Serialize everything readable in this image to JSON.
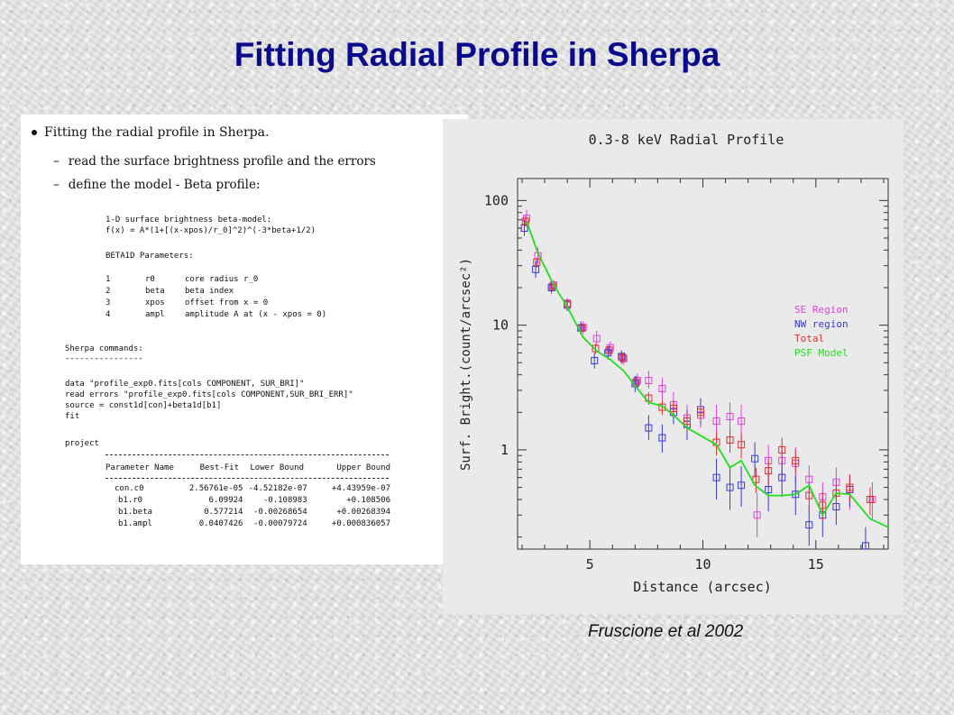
{
  "slide": {
    "title": "Fitting Radial Profile in Sherpa",
    "caption": "Fruscione et al 2002"
  },
  "document": {
    "bullet": "Fitting the radial profile in Sherpa.",
    "dash_items": [
      "read the surface brightness profile and the errors",
      "define the model - Beta profile:"
    ],
    "model_lines": [
      "1-D surface brightness beta-model:",
      "f(x) = A*(1+[(x-xpos)/r_0]^2)^(-3*beta+1/2)"
    ],
    "params_header": "BETA1D Parameters:",
    "params": [
      {
        "num": "1",
        "name": "r0",
        "desc": "core radius r_0"
      },
      {
        "num": "2",
        "name": "beta",
        "desc": "beta index"
      },
      {
        "num": "3",
        "name": "xpos",
        "desc": "offset from x = 0"
      },
      {
        "num": "4",
        "name": "ampl",
        "desc": "amplitude A at (x - xpos = 0)"
      }
    ],
    "commands_header": "Sherpa commands:",
    "commands_rule": "----------------",
    "commands": [
      "data \"profile_exp0.fits[cols COMPONENT, SUR_BRI]\"",
      "read errors \"profile_exp0.fits[cols COMPONENT,SUR_BRI_ERR]\"",
      "source = const1d[con]+beta1d[b1]",
      "fit"
    ],
    "project_label": "project",
    "fit_table": {
      "headers": [
        "Parameter Name",
        "Best-Fit",
        "Lower Bound",
        "Upper Bound"
      ],
      "rows": [
        [
          "con.c0",
          "2.56761e-05",
          "-4.52182e-07",
          "+4.43959e-07"
        ],
        [
          "b1.r0",
          "6.09924",
          "-0.108983",
          "+0.108506"
        ],
        [
          "b1.beta",
          "0.577214",
          "-0.00268654",
          "+0.00268394"
        ],
        [
          "b1.ampl",
          "0.0407426",
          "-0.00079724",
          "+0.000836057"
        ]
      ]
    }
  },
  "chart_data": {
    "type": "scatter",
    "title": "0.3-8 keV Radial Profile",
    "xlabel": "Distance (arcsec)",
    "ylabel": "Surf. Bright.(count/arcsec²)",
    "xlim": [
      1.8,
      18.2
    ],
    "ylim": [
      0.16,
      150
    ],
    "yscale": "log",
    "x_ticks": [
      5,
      10,
      15
    ],
    "y_ticks": [
      1,
      10,
      100
    ],
    "grid": false,
    "legend_position": "right-center",
    "series": [
      {
        "name": "SE Region",
        "color": "#e040e0",
        "marker": "square",
        "points": [
          {
            "x": 2.2,
            "y": 72,
            "lo": 62,
            "hi": 84
          },
          {
            "x": 2.7,
            "y": 36,
            "lo": 31,
            "hi": 42
          },
          {
            "x": 3.4,
            "y": 21,
            "lo": 19,
            "hi": 23
          },
          {
            "x": 4.0,
            "y": 15,
            "lo": 13.5,
            "hi": 16.5
          },
          {
            "x": 4.7,
            "y": 9.6,
            "lo": 8.5,
            "hi": 10.8
          },
          {
            "x": 5.3,
            "y": 7.8,
            "lo": 6.8,
            "hi": 9.0
          },
          {
            "x": 5.9,
            "y": 6.6,
            "lo": 5.8,
            "hi": 7.4
          },
          {
            "x": 6.5,
            "y": 5.4,
            "lo": 4.8,
            "hi": 6.1
          },
          {
            "x": 7.1,
            "y": 3.6,
            "lo": 3.1,
            "hi": 4.1
          },
          {
            "x": 7.6,
            "y": 3.6,
            "lo": 3.1,
            "hi": 4.3
          },
          {
            "x": 8.2,
            "y": 3.1,
            "lo": 2.5,
            "hi": 3.8
          },
          {
            "x": 8.7,
            "y": 2.3,
            "lo": 1.8,
            "hi": 2.9
          },
          {
            "x": 9.3,
            "y": 1.8,
            "lo": 1.3,
            "hi": 2.3
          },
          {
            "x": 9.9,
            "y": 1.9,
            "lo": 1.5,
            "hi": 2.4
          },
          {
            "x": 10.6,
            "y": 1.7,
            "lo": 1.2,
            "hi": 2.3
          },
          {
            "x": 11.2,
            "y": 1.85,
            "lo": 1.4,
            "hi": 2.4
          },
          {
            "x": 11.7,
            "y": 1.7,
            "lo": 1.2,
            "hi": 2.3
          },
          {
            "x": 12.4,
            "y": 0.3,
            "lo": 0.2,
            "hi": 0.45
          },
          {
            "x": 12.9,
            "y": 0.82,
            "lo": 0.6,
            "hi": 1.1
          },
          {
            "x": 13.5,
            "y": 0.82,
            "lo": 0.55,
            "hi": 1.1
          },
          {
            "x": 14.1,
            "y": 0.78,
            "lo": 0.55,
            "hi": 1.05
          },
          {
            "x": 14.7,
            "y": 0.58,
            "lo": 0.4,
            "hi": 0.75
          },
          {
            "x": 15.3,
            "y": 0.42,
            "lo": 0.3,
            "hi": 0.55
          },
          {
            "x": 15.9,
            "y": 0.55,
            "lo": 0.4,
            "hi": 0.72
          },
          {
            "x": 16.5,
            "y": 0.48,
            "lo": 0.33,
            "hi": 0.64
          },
          {
            "x": 17.5,
            "y": 0.4,
            "lo": 0.28,
            "hi": 0.55
          }
        ]
      },
      {
        "name": "NW region",
        "color": "#3a3ad0",
        "marker": "square",
        "points": [
          {
            "x": 2.1,
            "y": 60,
            "lo": 52,
            "hi": 70
          },
          {
            "x": 2.6,
            "y": 28,
            "lo": 24,
            "hi": 33
          },
          {
            "x": 3.3,
            "y": 20,
            "lo": 18,
            "hi": 22
          },
          {
            "x": 4.0,
            "y": 14.5,
            "lo": 13,
            "hi": 16
          },
          {
            "x": 4.6,
            "y": 9.5,
            "lo": 8.4,
            "hi": 10.7
          },
          {
            "x": 5.2,
            "y": 5.2,
            "lo": 4.5,
            "hi": 6.0
          },
          {
            "x": 5.8,
            "y": 6.0,
            "lo": 5.3,
            "hi": 6.8
          },
          {
            "x": 6.4,
            "y": 5.6,
            "lo": 4.9,
            "hi": 6.3
          },
          {
            "x": 7.0,
            "y": 3.4,
            "lo": 2.9,
            "hi": 3.9
          },
          {
            "x": 7.6,
            "y": 1.5,
            "lo": 1.2,
            "hi": 1.9
          },
          {
            "x": 8.2,
            "y": 1.25,
            "lo": 0.95,
            "hi": 1.6
          },
          {
            "x": 8.7,
            "y": 2.0,
            "lo": 1.6,
            "hi": 2.5
          },
          {
            "x": 9.3,
            "y": 1.6,
            "lo": 1.2,
            "hi": 2.1
          },
          {
            "x": 9.9,
            "y": 2.1,
            "lo": 1.6,
            "hi": 2.6
          },
          {
            "x": 10.6,
            "y": 0.6,
            "lo": 0.4,
            "hi": 0.85
          },
          {
            "x": 11.2,
            "y": 0.5,
            "lo": 0.33,
            "hi": 0.72
          },
          {
            "x": 11.7,
            "y": 0.52,
            "lo": 0.35,
            "hi": 0.74
          },
          {
            "x": 12.3,
            "y": 0.85,
            "lo": 0.6,
            "hi": 1.15
          },
          {
            "x": 12.9,
            "y": 0.48,
            "lo": 0.32,
            "hi": 0.68
          },
          {
            "x": 13.5,
            "y": 0.6,
            "lo": 0.42,
            "hi": 0.82
          },
          {
            "x": 14.1,
            "y": 0.44,
            "lo": 0.3,
            "hi": 0.62
          },
          {
            "x": 14.7,
            "y": 0.25,
            "lo": 0.17,
            "hi": 0.36
          },
          {
            "x": 15.3,
            "y": 0.3,
            "lo": 0.2,
            "hi": 0.42
          },
          {
            "x": 15.9,
            "y": 0.35,
            "lo": 0.25,
            "hi": 0.48
          },
          {
            "x": 16.5,
            "y": 0.48,
            "lo": 0.35,
            "hi": 0.62
          },
          {
            "x": 17.2,
            "y": 0.17,
            "lo": 0.16,
            "hi": 0.24
          }
        ]
      },
      {
        "name": "Total",
        "color": "#e03030",
        "marker": "square",
        "points": [
          {
            "x": 2.15,
            "y": 68,
            "lo": 62,
            "hi": 75
          },
          {
            "x": 2.65,
            "y": 32,
            "lo": 29,
            "hi": 35
          },
          {
            "x": 3.35,
            "y": 20.5,
            "lo": 19,
            "hi": 22
          },
          {
            "x": 4.0,
            "y": 14.8,
            "lo": 14,
            "hi": 15.7
          },
          {
            "x": 4.65,
            "y": 9.5,
            "lo": 8.8,
            "hi": 10.3
          },
          {
            "x": 5.25,
            "y": 6.5,
            "lo": 5.9,
            "hi": 7.1
          },
          {
            "x": 5.85,
            "y": 6.3,
            "lo": 5.8,
            "hi": 6.9
          },
          {
            "x": 6.45,
            "y": 5.5,
            "lo": 5.0,
            "hi": 6.0
          },
          {
            "x": 7.05,
            "y": 3.5,
            "lo": 3.2,
            "hi": 3.9
          },
          {
            "x": 7.6,
            "y": 2.6,
            "lo": 2.3,
            "hi": 2.9
          },
          {
            "x": 8.2,
            "y": 2.2,
            "lo": 1.9,
            "hi": 2.5
          },
          {
            "x": 8.7,
            "y": 2.15,
            "lo": 1.85,
            "hi": 2.5
          },
          {
            "x": 9.3,
            "y": 1.7,
            "lo": 1.4,
            "hi": 2.0
          },
          {
            "x": 9.9,
            "y": 2.0,
            "lo": 1.7,
            "hi": 2.3
          },
          {
            "x": 10.6,
            "y": 1.15,
            "lo": 0.9,
            "hi": 1.4
          },
          {
            "x": 11.2,
            "y": 1.2,
            "lo": 0.95,
            "hi": 1.45
          },
          {
            "x": 11.7,
            "y": 1.1,
            "lo": 0.85,
            "hi": 1.35
          },
          {
            "x": 12.35,
            "y": 0.58,
            "lo": 0.45,
            "hi": 0.72
          },
          {
            "x": 12.9,
            "y": 0.68,
            "lo": 0.53,
            "hi": 0.85
          },
          {
            "x": 13.5,
            "y": 1.0,
            "lo": 0.78,
            "hi": 1.25
          },
          {
            "x": 14.1,
            "y": 0.82,
            "lo": 0.64,
            "hi": 1.0
          },
          {
            "x": 14.7,
            "y": 0.43,
            "lo": 0.33,
            "hi": 0.55
          },
          {
            "x": 15.3,
            "y": 0.36,
            "lo": 0.27,
            "hi": 0.46
          },
          {
            "x": 15.9,
            "y": 0.45,
            "lo": 0.35,
            "hi": 0.57
          },
          {
            "x": 16.5,
            "y": 0.5,
            "lo": 0.38,
            "hi": 0.63
          },
          {
            "x": 17.4,
            "y": 0.4,
            "lo": 0.3,
            "hi": 0.5
          }
        ]
      },
      {
        "name": "PSF Model",
        "color": "#22dd22",
        "marker": "line",
        "points": [
          {
            "x": 2.2,
            "y": 68
          },
          {
            "x": 2.7,
            "y": 38
          },
          {
            "x": 3.4,
            "y": 21
          },
          {
            "x": 4.0,
            "y": 14
          },
          {
            "x": 4.7,
            "y": 8.0
          },
          {
            "x": 5.3,
            "y": 6.2
          },
          {
            "x": 5.9,
            "y": 5.3
          },
          {
            "x": 6.5,
            "y": 4.3
          },
          {
            "x": 7.1,
            "y": 3.1
          },
          {
            "x": 7.6,
            "y": 2.4
          },
          {
            "x": 8.2,
            "y": 2.25
          },
          {
            "x": 8.7,
            "y": 1.9
          },
          {
            "x": 9.3,
            "y": 1.5
          },
          {
            "x": 9.9,
            "y": 1.3
          },
          {
            "x": 10.6,
            "y": 1.1
          },
          {
            "x": 11.2,
            "y": 0.72
          },
          {
            "x": 11.7,
            "y": 0.82
          },
          {
            "x": 12.3,
            "y": 0.52
          },
          {
            "x": 12.9,
            "y": 0.43
          },
          {
            "x": 13.5,
            "y": 0.43
          },
          {
            "x": 14.1,
            "y": 0.44
          },
          {
            "x": 14.7,
            "y": 0.52
          },
          {
            "x": 15.3,
            "y": 0.3
          },
          {
            "x": 15.9,
            "y": 0.45
          },
          {
            "x": 16.5,
            "y": 0.44
          },
          {
            "x": 17.4,
            "y": 0.28
          },
          {
            "x": 18.2,
            "y": 0.24
          }
        ]
      }
    ]
  }
}
